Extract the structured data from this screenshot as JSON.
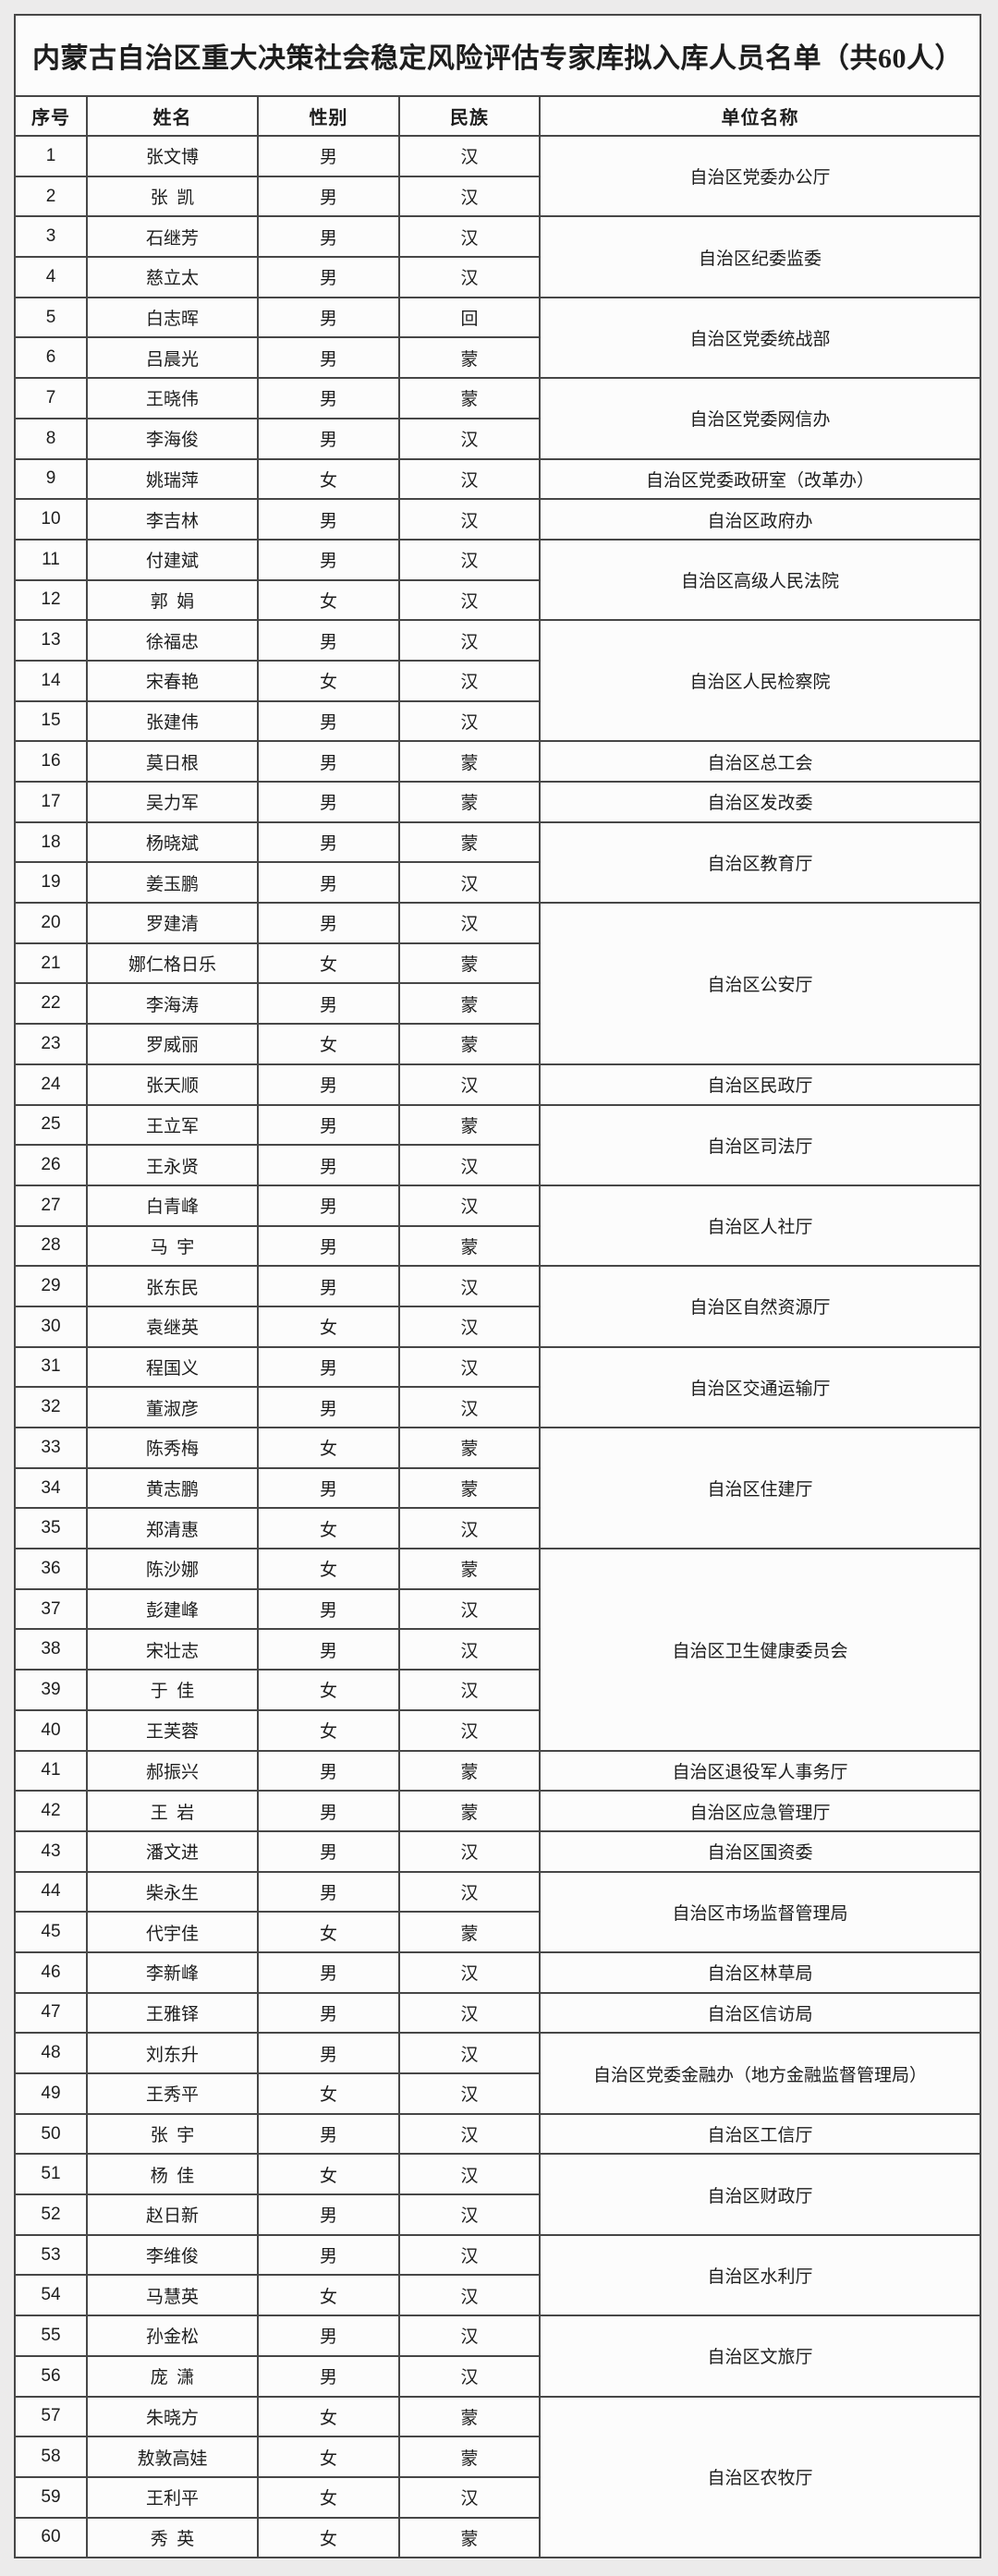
{
  "page": {
    "background": "#ecebeb",
    "title": "内蒙古自治区重大决策社会稳定风险评估专家库拟入库人员名单（共60人）"
  },
  "table": {
    "headers": [
      "序号",
      "姓名",
      "性别",
      "民族",
      "单位名称"
    ],
    "rows": [
      {
        "no": "1",
        "name": "张文博",
        "gender": "男",
        "ethnicity": "汉"
      },
      {
        "no": "2",
        "name": "张 凯",
        "gender": "男",
        "ethnicity": "汉"
      },
      {
        "no": "3",
        "name": "石继芳",
        "gender": "男",
        "ethnicity": "汉"
      },
      {
        "no": "4",
        "name": "慈立太",
        "gender": "男",
        "ethnicity": "汉"
      },
      {
        "no": "5",
        "name": "白志晖",
        "gender": "男",
        "ethnicity": "回"
      },
      {
        "no": "6",
        "name": "吕晨光",
        "gender": "男",
        "ethnicity": "蒙"
      },
      {
        "no": "7",
        "name": "王晓伟",
        "gender": "男",
        "ethnicity": "蒙"
      },
      {
        "no": "8",
        "name": "李海俊",
        "gender": "男",
        "ethnicity": "汉"
      },
      {
        "no": "9",
        "name": "姚瑞萍",
        "gender": "女",
        "ethnicity": "汉"
      },
      {
        "no": "10",
        "name": "李吉林",
        "gender": "男",
        "ethnicity": "汉"
      },
      {
        "no": "11",
        "name": "付建斌",
        "gender": "男",
        "ethnicity": "汉"
      },
      {
        "no": "12",
        "name": "郭 娟",
        "gender": "女",
        "ethnicity": "汉"
      },
      {
        "no": "13",
        "name": "徐福忠",
        "gender": "男",
        "ethnicity": "汉"
      },
      {
        "no": "14",
        "name": "宋春艳",
        "gender": "女",
        "ethnicity": "汉"
      },
      {
        "no": "15",
        "name": "张建伟",
        "gender": "男",
        "ethnicity": "汉"
      },
      {
        "no": "16",
        "name": "莫日根",
        "gender": "男",
        "ethnicity": "蒙"
      },
      {
        "no": "17",
        "name": "吴力军",
        "gender": "男",
        "ethnicity": "蒙"
      },
      {
        "no": "18",
        "name": "杨晓斌",
        "gender": "男",
        "ethnicity": "蒙"
      },
      {
        "no": "19",
        "name": "姜玉鹏",
        "gender": "男",
        "ethnicity": "汉"
      },
      {
        "no": "20",
        "name": "罗建清",
        "gender": "男",
        "ethnicity": "汉"
      },
      {
        "no": "21",
        "name": "娜仁格日乐",
        "gender": "女",
        "ethnicity": "蒙"
      },
      {
        "no": "22",
        "name": "李海涛",
        "gender": "男",
        "ethnicity": "蒙"
      },
      {
        "no": "23",
        "name": "罗威丽",
        "gender": "女",
        "ethnicity": "蒙"
      },
      {
        "no": "24",
        "name": "张天顺",
        "gender": "男",
        "ethnicity": "汉"
      },
      {
        "no": "25",
        "name": "王立军",
        "gender": "男",
        "ethnicity": "蒙"
      },
      {
        "no": "26",
        "name": "王永贤",
        "gender": "男",
        "ethnicity": "汉"
      },
      {
        "no": "27",
        "name": "白青峰",
        "gender": "男",
        "ethnicity": "汉"
      },
      {
        "no": "28",
        "name": "马 宇",
        "gender": "男",
        "ethnicity": "蒙"
      },
      {
        "no": "29",
        "name": "张东民",
        "gender": "男",
        "ethnicity": "汉"
      },
      {
        "no": "30",
        "name": "袁继英",
        "gender": "女",
        "ethnicity": "汉"
      },
      {
        "no": "31",
        "name": "程国义",
        "gender": "男",
        "ethnicity": "汉"
      },
      {
        "no": "32",
        "name": "董淑彦",
        "gender": "男",
        "ethnicity": "汉"
      },
      {
        "no": "33",
        "name": "陈秀梅",
        "gender": "女",
        "ethnicity": "蒙"
      },
      {
        "no": "34",
        "name": "黄志鹏",
        "gender": "男",
        "ethnicity": "蒙"
      },
      {
        "no": "35",
        "name": "郑清惠",
        "gender": "女",
        "ethnicity": "汉"
      },
      {
        "no": "36",
        "name": "陈沙娜",
        "gender": "女",
        "ethnicity": "蒙"
      },
      {
        "no": "37",
        "name": "彭建峰",
        "gender": "男",
        "ethnicity": "汉"
      },
      {
        "no": "38",
        "name": "宋壮志",
        "gender": "男",
        "ethnicity": "汉"
      },
      {
        "no": "39",
        "name": "于 佳",
        "gender": "女",
        "ethnicity": "汉"
      },
      {
        "no": "40",
        "name": "王芙蓉",
        "gender": "女",
        "ethnicity": "汉"
      },
      {
        "no": "41",
        "name": "郝振兴",
        "gender": "男",
        "ethnicity": "蒙"
      },
      {
        "no": "42",
        "name": "王 岩",
        "gender": "男",
        "ethnicity": "蒙"
      },
      {
        "no": "43",
        "name": "潘文进",
        "gender": "男",
        "ethnicity": "汉"
      },
      {
        "no": "44",
        "name": "柴永生",
        "gender": "男",
        "ethnicity": "汉"
      },
      {
        "no": "45",
        "name": "代宇佳",
        "gender": "女",
        "ethnicity": "蒙"
      },
      {
        "no": "46",
        "name": "李新峰",
        "gender": "男",
        "ethnicity": "汉"
      },
      {
        "no": "47",
        "name": "王雅铎",
        "gender": "男",
        "ethnicity": "汉"
      },
      {
        "no": "48",
        "name": "刘东升",
        "gender": "男",
        "ethnicity": "汉"
      },
      {
        "no": "49",
        "name": "王秀平",
        "gender": "女",
        "ethnicity": "汉"
      },
      {
        "no": "50",
        "name": "张 宇",
        "gender": "男",
        "ethnicity": "汉"
      },
      {
        "no": "51",
        "name": "杨 佳",
        "gender": "女",
        "ethnicity": "汉"
      },
      {
        "no": "52",
        "name": "赵日新",
        "gender": "男",
        "ethnicity": "汉"
      },
      {
        "no": "53",
        "name": "李维俊",
        "gender": "男",
        "ethnicity": "汉"
      },
      {
        "no": "54",
        "name": "马慧英",
        "gender": "女",
        "ethnicity": "汉"
      },
      {
        "no": "55",
        "name": "孙金松",
        "gender": "男",
        "ethnicity": "汉"
      },
      {
        "no": "56",
        "name": "庞 潇",
        "gender": "男",
        "ethnicity": "汉"
      },
      {
        "no": "57",
        "name": "朱晓方",
        "gender": "女",
        "ethnicity": "蒙"
      },
      {
        "no": "58",
        "name": "敖敦高娃",
        "gender": "女",
        "ethnicity": "蒙"
      },
      {
        "no": "59",
        "name": "王利平",
        "gender": "女",
        "ethnicity": "汉"
      },
      {
        "no": "60",
        "name": "秀 英",
        "gender": "女",
        "ethnicity": "蒙"
      }
    ],
    "unit_groups": [
      {
        "start": 1,
        "span": 2,
        "unit": "自治区党委办公厅"
      },
      {
        "start": 3,
        "span": 2,
        "unit": "自治区纪委监委"
      },
      {
        "start": 5,
        "span": 2,
        "unit": "自治区党委统战部"
      },
      {
        "start": 7,
        "span": 2,
        "unit": "自治区党委网信办"
      },
      {
        "start": 9,
        "span": 1,
        "unit": "自治区党委政研室（改革办）"
      },
      {
        "start": 10,
        "span": 1,
        "unit": "自治区政府办"
      },
      {
        "start": 11,
        "span": 2,
        "unit": "自治区高级人民法院"
      },
      {
        "start": 13,
        "span": 3,
        "unit": "自治区人民检察院"
      },
      {
        "start": 16,
        "span": 1,
        "unit": "自治区总工会"
      },
      {
        "start": 17,
        "span": 1,
        "unit": "自治区发改委"
      },
      {
        "start": 18,
        "span": 2,
        "unit": "自治区教育厅"
      },
      {
        "start": 20,
        "span": 4,
        "unit": "自治区公安厅"
      },
      {
        "start": 24,
        "span": 1,
        "unit": "自治区民政厅"
      },
      {
        "start": 25,
        "span": 2,
        "unit": "自治区司法厅"
      },
      {
        "start": 27,
        "span": 2,
        "unit": "自治区人社厅"
      },
      {
        "start": 29,
        "span": 2,
        "unit": "自治区自然资源厅"
      },
      {
        "start": 31,
        "span": 2,
        "unit": "自治区交通运输厅"
      },
      {
        "start": 33,
        "span": 3,
        "unit": "自治区住建厅"
      },
      {
        "start": 36,
        "span": 5,
        "unit": "自治区卫生健康委员会"
      },
      {
        "start": 41,
        "span": 1,
        "unit": "自治区退役军人事务厅"
      },
      {
        "start": 42,
        "span": 1,
        "unit": "自治区应急管理厅"
      },
      {
        "start": 43,
        "span": 1,
        "unit": "自治区国资委"
      },
      {
        "start": 44,
        "span": 2,
        "unit": "自治区市场监督管理局"
      },
      {
        "start": 46,
        "span": 1,
        "unit": "自治区林草局"
      },
      {
        "start": 47,
        "span": 1,
        "unit": "自治区信访局"
      },
      {
        "start": 48,
        "span": 2,
        "unit": "自治区党委金融办（地方金融监督管理局）"
      },
      {
        "start": 50,
        "span": 1,
        "unit": "自治区工信厅"
      },
      {
        "start": 51,
        "span": 2,
        "unit": "自治区财政厅"
      },
      {
        "start": 53,
        "span": 2,
        "unit": "自治区水利厅"
      },
      {
        "start": 55,
        "span": 2,
        "unit": "自治区文旅厅"
      },
      {
        "start": 57,
        "span": 4,
        "unit": "自治区农牧厅"
      }
    ]
  }
}
